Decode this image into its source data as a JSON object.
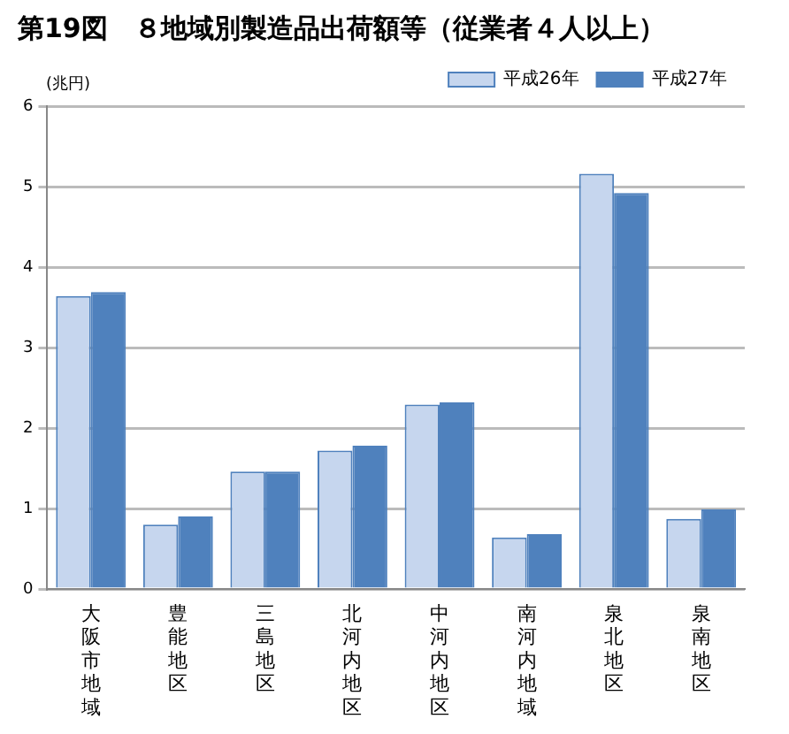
{
  "chart_data": {
    "type": "bar",
    "title": "第19図　８地域別製造品出荷額等（従業者４人以上）",
    "ylabel": "(兆円)",
    "categories": [
      "大阪市地域",
      "豊能地区",
      "三島地区",
      "北河内地区",
      "中河内地区",
      "南河内地域",
      "泉北地区",
      "泉南地区"
    ],
    "series": [
      {
        "name": "平成26年",
        "color": "#c6d6ee",
        "values": [
          3.64,
          0.8,
          1.46,
          1.72,
          2.29,
          0.64,
          5.16,
          0.87
        ]
      },
      {
        "name": "平成27年",
        "color": "#4f81bd",
        "values": [
          3.69,
          0.9,
          1.46,
          1.78,
          2.32,
          0.68,
          4.92,
          0.99
        ]
      }
    ],
    "ylim": [
      0,
      6
    ],
    "yticks": [
      0,
      1,
      2,
      3,
      4,
      5,
      6
    ],
    "grid": "y",
    "legend": "top right"
  }
}
